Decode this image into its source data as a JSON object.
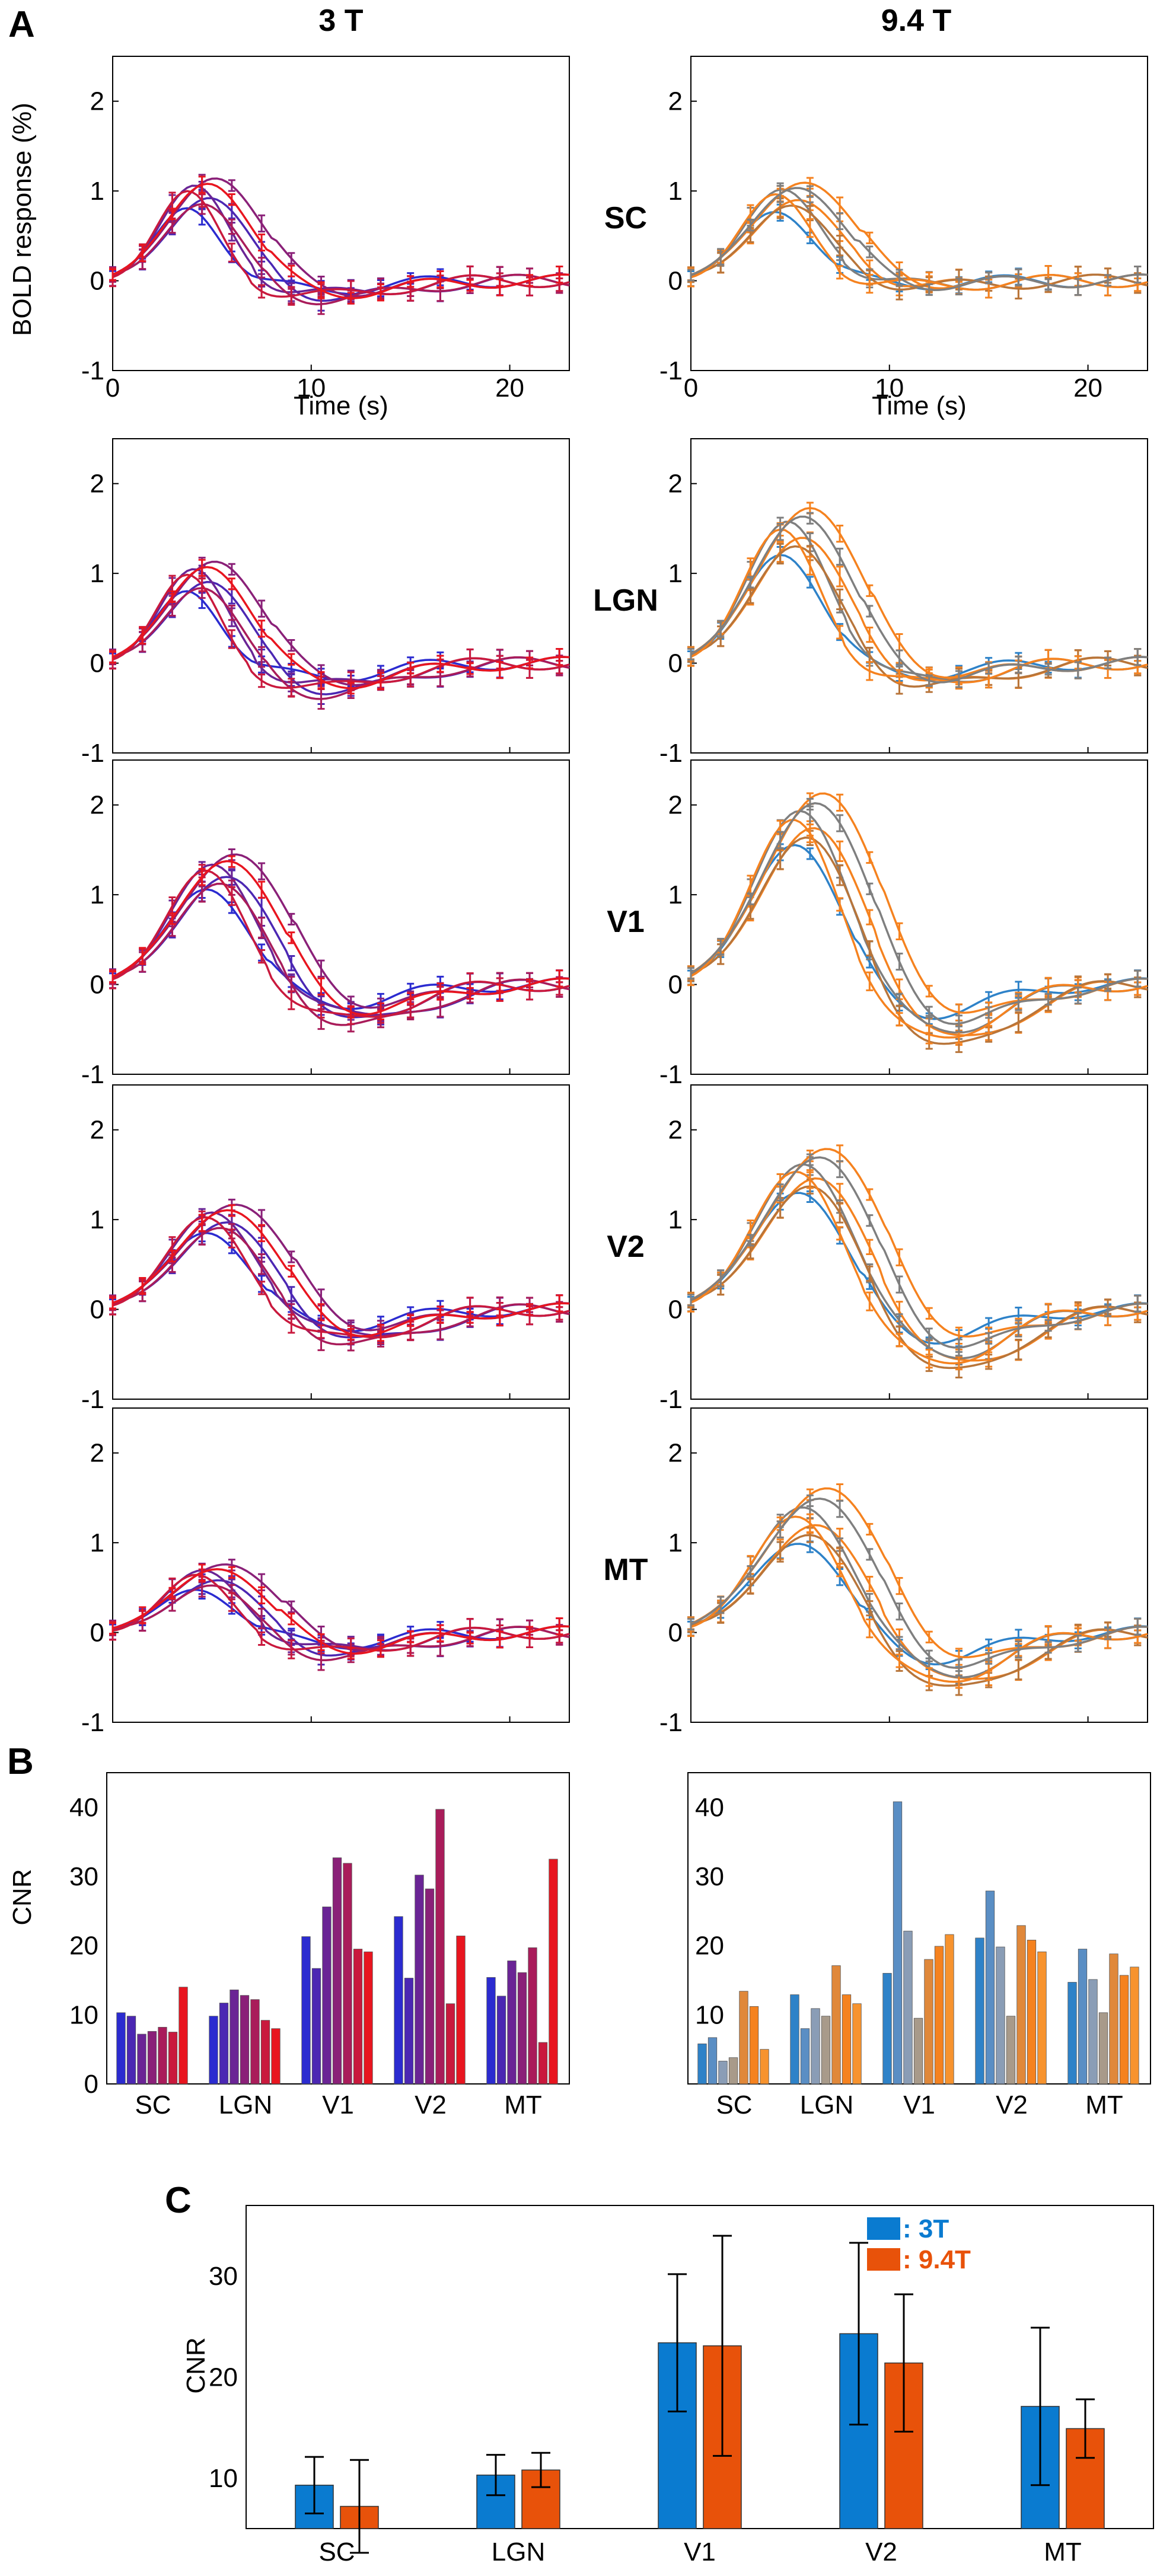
{
  "panel_labels": [
    "A",
    "B",
    "C"
  ],
  "colors": {
    "t3_start": "#2b2bd0",
    "t3_end": "#e8151f",
    "t94_blue": "#2e82c8",
    "t94_orange": "#f5821f",
    "t94_gray": "#7f7f7f",
    "t94_brown": "#b8753a",
    "c_3t": "#0a7bd0",
    "c_94t": "#e8520a"
  },
  "chart_data": [
    {
      "type": "line",
      "panel": "A",
      "column_titles": [
        "3 T",
        "9.4 T"
      ],
      "ylabel": "BOLD response (%)",
      "xlabel": "Time (s)",
      "xlim": [
        0,
        23
      ],
      "ylim": [
        -1,
        2.5
      ],
      "x_ticks": [
        0,
        10,
        20
      ],
      "y_ticks": [
        -1,
        0,
        1,
        2
      ],
      "rows": [
        {
          "region": "SC",
          "peak_3t": 1.0,
          "tpeak_3t": 4.5,
          "peak_94t": 0.95,
          "tpeak_94t": 5.0,
          "under_3t": 0.15,
          "under_94t": 0.05,
          "spread": 0.35
        },
        {
          "region": "LGN",
          "peak_3t": 1.0,
          "tpeak_3t": 4.5,
          "peak_94t": 1.5,
          "tpeak_94t": 5.3,
          "under_3t": 0.25,
          "under_94t": 0.2,
          "spread": 0.35
        },
        {
          "region": "V1",
          "peak_3t": 1.3,
          "tpeak_3t": 5.5,
          "peak_94t": 1.9,
          "tpeak_94t": 6.0,
          "under_3t": 0.35,
          "under_94t": 0.55,
          "spread": 0.3
        },
        {
          "region": "V2",
          "peak_3t": 1.05,
          "tpeak_3t": 5.5,
          "peak_94t": 1.6,
          "tpeak_94t": 6.2,
          "under_3t": 0.3,
          "under_94t": 0.55,
          "spread": 0.3
        },
        {
          "region": "MT",
          "peak_3t": 0.65,
          "tpeak_3t": 5.0,
          "peak_94t": 1.35,
          "tpeak_94t": 6.2,
          "under_3t": 0.2,
          "under_94t": 0.5,
          "spread": 0.45
        }
      ]
    },
    {
      "type": "bar",
      "panel": "B",
      "ylabel": "CNR",
      "categories": [
        "SC",
        "LGN",
        "V1",
        "V2",
        "MT"
      ],
      "ylim": [
        0,
        45
      ],
      "y_ticks": [
        0,
        10,
        20,
        30,
        40
      ],
      "series_3t": [
        [
          10.3,
          9.8,
          7.2,
          7.6,
          8.2,
          7.5,
          14.0
        ],
        [
          9.8,
          11.7,
          13.6,
          12.8,
          12.2,
          9.2,
          8.0
        ],
        [
          21.3,
          16.7,
          25.6,
          32.7,
          31.9,
          19.5,
          19.1
        ],
        [
          24.2,
          15.3,
          30.2,
          28.2,
          39.7,
          11.6,
          21.4
        ],
        [
          15.4,
          12.7,
          17.8,
          16.1,
          19.7,
          6.0,
          32.5
        ]
      ],
      "series_94t": [
        [
          5.8,
          6.7,
          3.3,
          3.8,
          13.4,
          11.2,
          5.0
        ],
        [
          12.9,
          8.0,
          10.9,
          9.8,
          17.1,
          12.9,
          11.6
        ],
        [
          16.0,
          40.8,
          22.1,
          9.5,
          18.0,
          19.9,
          21.6
        ],
        [
          21.1,
          27.9,
          19.8,
          9.8,
          22.9,
          20.8,
          19.1
        ],
        [
          14.7,
          19.5,
          15.1,
          10.3,
          18.8,
          15.7,
          16.9
        ]
      ]
    },
    {
      "type": "bar",
      "panel": "C",
      "ylabel": "CNR",
      "categories": [
        "SC",
        "LGN",
        "V1",
        "V2",
        "MT"
      ],
      "ylim": [
        5,
        37
      ],
      "y_ticks": [
        10,
        20,
        30
      ],
      "legend": [
        ": 3T",
        ": 9.4T"
      ],
      "series": [
        {
          "name": "3T",
          "values": [
            9.3,
            10.3,
            23.4,
            24.3,
            17.1
          ],
          "errors": [
            2.8,
            2.0,
            6.8,
            9.0,
            7.8
          ]
        },
        {
          "name": "9.4T",
          "values": [
            7.2,
            10.8,
            23.1,
            21.4,
            14.9
          ],
          "errors": [
            4.6,
            1.7,
            10.9,
            6.8,
            2.9
          ]
        }
      ]
    }
  ]
}
